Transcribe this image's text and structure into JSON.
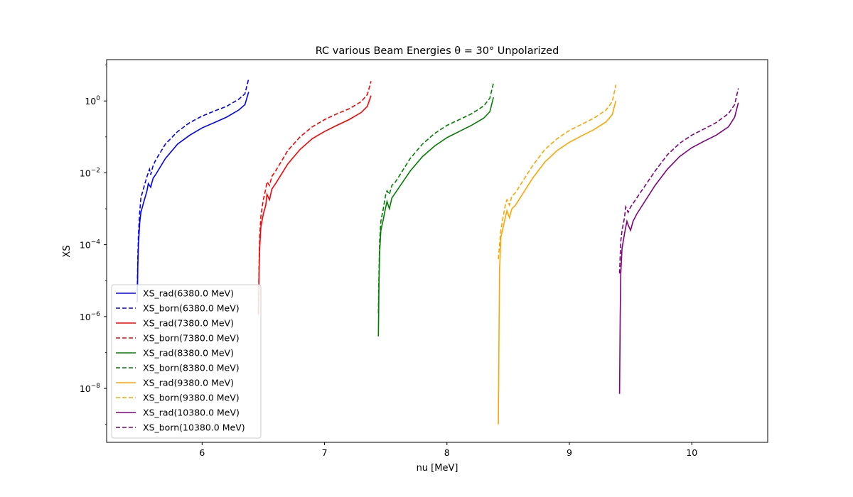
{
  "chart_data": {
    "type": "line",
    "title": "RC various Beam Energies θ = 30° Unpolarized",
    "xlabel": "nu [MeV]",
    "ylabel": "XS",
    "xlim": [
      5.22,
      10.62
    ],
    "ylim_log10": [
      -9.5,
      1.15
    ],
    "y_scale": "log",
    "x_ticks": [
      6,
      7,
      8,
      9,
      10
    ],
    "x_tick_labels": [
      "6",
      "7",
      "8",
      "9",
      "10"
    ],
    "y_ticks_log10": [
      -8,
      -6,
      -4,
      -2,
      0
    ],
    "y_tick_labels": [
      {
        "base": "10",
        "exp": "−8"
      },
      {
        "base": "10",
        "exp": "−6"
      },
      {
        "base": "10",
        "exp": "−4"
      },
      {
        "base": "10",
        "exp": "−2"
      },
      {
        "base": "10",
        "exp": "0"
      }
    ],
    "legend_position": "lower-left",
    "series": [
      {
        "name": "XS_rad(6380.0 MeV)",
        "color": "#0000ff",
        "dash": "solid",
        "points": [
          [
            5.47,
            -5.6
          ],
          [
            5.475,
            -4.6
          ],
          [
            5.48,
            -4.0
          ],
          [
            5.49,
            -3.4
          ],
          [
            5.5,
            -3.1
          ],
          [
            5.52,
            -2.85
          ],
          [
            5.55,
            -2.5
          ],
          [
            5.56,
            -2.3
          ],
          [
            5.58,
            -2.4
          ],
          [
            5.6,
            -2.15
          ],
          [
            5.62,
            -2.05
          ],
          [
            5.7,
            -1.6
          ],
          [
            5.8,
            -1.2
          ],
          [
            5.9,
            -0.95
          ],
          [
            6.0,
            -0.75
          ],
          [
            6.1,
            -0.6
          ],
          [
            6.2,
            -0.45
          ],
          [
            6.3,
            -0.25
          ],
          [
            6.35,
            -0.1
          ],
          [
            6.38,
            0.25
          ]
        ]
      },
      {
        "name": "XS_born(6380.0 MeV)",
        "color": "#0000ff",
        "dash": "dashed",
        "points": [
          [
            5.47,
            -5.3
          ],
          [
            5.475,
            -4.3
          ],
          [
            5.48,
            -3.7
          ],
          [
            5.49,
            -3.1
          ],
          [
            5.5,
            -2.7
          ],
          [
            5.52,
            -2.45
          ],
          [
            5.55,
            -2.1
          ],
          [
            5.57,
            -1.9
          ],
          [
            5.58,
            -2.05
          ],
          [
            5.6,
            -1.8
          ],
          [
            5.62,
            -1.65
          ],
          [
            5.7,
            -1.2
          ],
          [
            5.8,
            -0.85
          ],
          [
            5.9,
            -0.6
          ],
          [
            6.0,
            -0.42
          ],
          [
            6.1,
            -0.28
          ],
          [
            6.2,
            -0.15
          ],
          [
            6.3,
            0.05
          ],
          [
            6.35,
            0.2
          ],
          [
            6.38,
            0.62
          ]
        ]
      },
      {
        "name": "XS_rad(7380.0 MeV)",
        "color": "#ff0000",
        "dash": "solid",
        "points": [
          [
            6.46,
            -5.9
          ],
          [
            6.465,
            -4.8
          ],
          [
            6.47,
            -4.1
          ],
          [
            6.48,
            -3.5
          ],
          [
            6.5,
            -3.15
          ],
          [
            6.52,
            -2.9
          ],
          [
            6.53,
            -2.6
          ],
          [
            6.55,
            -2.75
          ],
          [
            6.57,
            -2.45
          ],
          [
            6.6,
            -2.3
          ],
          [
            6.7,
            -1.75
          ],
          [
            6.8,
            -1.35
          ],
          [
            6.9,
            -1.05
          ],
          [
            7.0,
            -0.85
          ],
          [
            7.1,
            -0.68
          ],
          [
            7.2,
            -0.52
          ],
          [
            7.3,
            -0.32
          ],
          [
            7.35,
            -0.15
          ],
          [
            7.38,
            0.15
          ]
        ]
      },
      {
        "name": "XS_born(7380.0 MeV)",
        "color": "#ff0000",
        "dash": "dashed",
        "points": [
          [
            6.46,
            -5.95
          ],
          [
            6.465,
            -4.6
          ],
          [
            6.47,
            -3.8
          ],
          [
            6.48,
            -3.2
          ],
          [
            6.5,
            -2.75
          ],
          [
            6.52,
            -2.45
          ],
          [
            6.53,
            -2.25
          ],
          [
            6.55,
            -2.35
          ],
          [
            6.57,
            -2.1
          ],
          [
            6.6,
            -1.95
          ],
          [
            6.7,
            -1.38
          ],
          [
            6.8,
            -1.0
          ],
          [
            6.9,
            -0.72
          ],
          [
            7.0,
            -0.52
          ],
          [
            7.1,
            -0.36
          ],
          [
            7.2,
            -0.22
          ],
          [
            7.3,
            -0.02
          ],
          [
            7.35,
            0.18
          ],
          [
            7.38,
            0.55
          ]
        ]
      },
      {
        "name": "XS_rad(8380.0 MeV)",
        "color": "#008000",
        "dash": "solid",
        "points": [
          [
            7.44,
            -6.55
          ],
          [
            7.445,
            -5.0
          ],
          [
            7.45,
            -4.2
          ],
          [
            7.46,
            -3.6
          ],
          [
            7.48,
            -3.3
          ],
          [
            7.5,
            -2.95
          ],
          [
            7.51,
            -2.8
          ],
          [
            7.53,
            -3.0
          ],
          [
            7.55,
            -2.7
          ],
          [
            7.58,
            -2.55
          ],
          [
            7.7,
            -1.95
          ],
          [
            7.8,
            -1.55
          ],
          [
            7.9,
            -1.25
          ],
          [
            8.0,
            -1.02
          ],
          [
            8.1,
            -0.85
          ],
          [
            8.2,
            -0.68
          ],
          [
            8.3,
            -0.48
          ],
          [
            8.35,
            -0.3
          ],
          [
            8.38,
            0.1
          ]
        ]
      },
      {
        "name": "XS_born(8380.0 MeV)",
        "color": "#008000",
        "dash": "dashed",
        "points": [
          [
            7.44,
            -5.9
          ],
          [
            7.445,
            -4.7
          ],
          [
            7.45,
            -3.9
          ],
          [
            7.46,
            -3.35
          ],
          [
            7.48,
            -3.0
          ],
          [
            7.5,
            -2.6
          ],
          [
            7.51,
            -2.5
          ],
          [
            7.53,
            -2.6
          ],
          [
            7.55,
            -2.35
          ],
          [
            7.58,
            -2.25
          ],
          [
            7.7,
            -1.6
          ],
          [
            7.8,
            -1.2
          ],
          [
            7.9,
            -0.9
          ],
          [
            8.0,
            -0.68
          ],
          [
            8.1,
            -0.52
          ],
          [
            8.2,
            -0.36
          ],
          [
            8.3,
            -0.14
          ],
          [
            8.35,
            0.08
          ],
          [
            8.38,
            0.5
          ]
        ]
      },
      {
        "name": "XS_rad(9380.0 MeV)",
        "color": "#ffa500",
        "dash": "solid",
        "points": [
          [
            8.42,
            -9.0
          ],
          [
            8.425,
            -6.5
          ],
          [
            8.43,
            -4.7
          ],
          [
            8.44,
            -3.8
          ],
          [
            8.46,
            -3.5
          ],
          [
            8.48,
            -3.2
          ],
          [
            8.49,
            -3.05
          ],
          [
            8.51,
            -3.25
          ],
          [
            8.53,
            -3.0
          ],
          [
            8.56,
            -2.9
          ],
          [
            8.7,
            -2.15
          ],
          [
            8.8,
            -1.7
          ],
          [
            8.9,
            -1.38
          ],
          [
            9.0,
            -1.15
          ],
          [
            9.1,
            -0.97
          ],
          [
            9.2,
            -0.8
          ],
          [
            9.3,
            -0.58
          ],
          [
            9.35,
            -0.38
          ],
          [
            9.38,
            0.0
          ]
        ]
      },
      {
        "name": "XS_born(9380.0 MeV)",
        "color": "#ffa500",
        "dash": "dashed",
        "points": [
          [
            8.42,
            -4.4
          ],
          [
            8.43,
            -4.0
          ],
          [
            8.44,
            -3.6
          ],
          [
            8.46,
            -3.2
          ],
          [
            8.48,
            -2.85
          ],
          [
            8.49,
            -2.75
          ],
          [
            8.51,
            -2.9
          ],
          [
            8.53,
            -2.65
          ],
          [
            8.56,
            -2.55
          ],
          [
            8.7,
            -1.8
          ],
          [
            8.8,
            -1.35
          ],
          [
            8.9,
            -1.05
          ],
          [
            9.0,
            -0.82
          ],
          [
            9.1,
            -0.65
          ],
          [
            9.2,
            -0.48
          ],
          [
            9.3,
            -0.25
          ],
          [
            9.35,
            -0.02
          ],
          [
            9.38,
            0.45
          ]
        ]
      },
      {
        "name": "XS_rad(10380.0 MeV)",
        "color": "#800080",
        "dash": "solid",
        "points": [
          [
            9.41,
            -8.15
          ],
          [
            9.415,
            -6.0
          ],
          [
            9.42,
            -4.8
          ],
          [
            9.43,
            -4.1
          ],
          [
            9.45,
            -3.7
          ],
          [
            9.47,
            -3.35
          ],
          [
            9.48,
            -3.45
          ],
          [
            9.5,
            -3.6
          ],
          [
            9.52,
            -3.35
          ],
          [
            9.55,
            -3.15
          ],
          [
            9.7,
            -2.35
          ],
          [
            9.8,
            -1.9
          ],
          [
            9.9,
            -1.55
          ],
          [
            10.0,
            -1.3
          ],
          [
            10.1,
            -1.12
          ],
          [
            10.2,
            -0.95
          ],
          [
            10.3,
            -0.72
          ],
          [
            10.35,
            -0.45
          ],
          [
            10.38,
            -0.05
          ]
        ]
      },
      {
        "name": "XS_born(10380.0 MeV)",
        "color": "#800080",
        "dash": "dashed",
        "points": [
          [
            9.41,
            -4.8
          ],
          [
            9.415,
            -4.3
          ],
          [
            9.42,
            -3.9
          ],
          [
            9.43,
            -3.6
          ],
          [
            9.45,
            -3.25
          ],
          [
            9.46,
            -2.95
          ],
          [
            9.48,
            -3.1
          ],
          [
            9.5,
            -2.95
          ],
          [
            9.53,
            -2.8
          ],
          [
            9.7,
            -1.95
          ],
          [
            9.8,
            -1.5
          ],
          [
            9.9,
            -1.18
          ],
          [
            10.0,
            -0.95
          ],
          [
            10.1,
            -0.78
          ],
          [
            10.2,
            -0.6
          ],
          [
            10.3,
            -0.35
          ],
          [
            10.35,
            -0.1
          ],
          [
            10.38,
            0.35
          ]
        ]
      }
    ]
  }
}
